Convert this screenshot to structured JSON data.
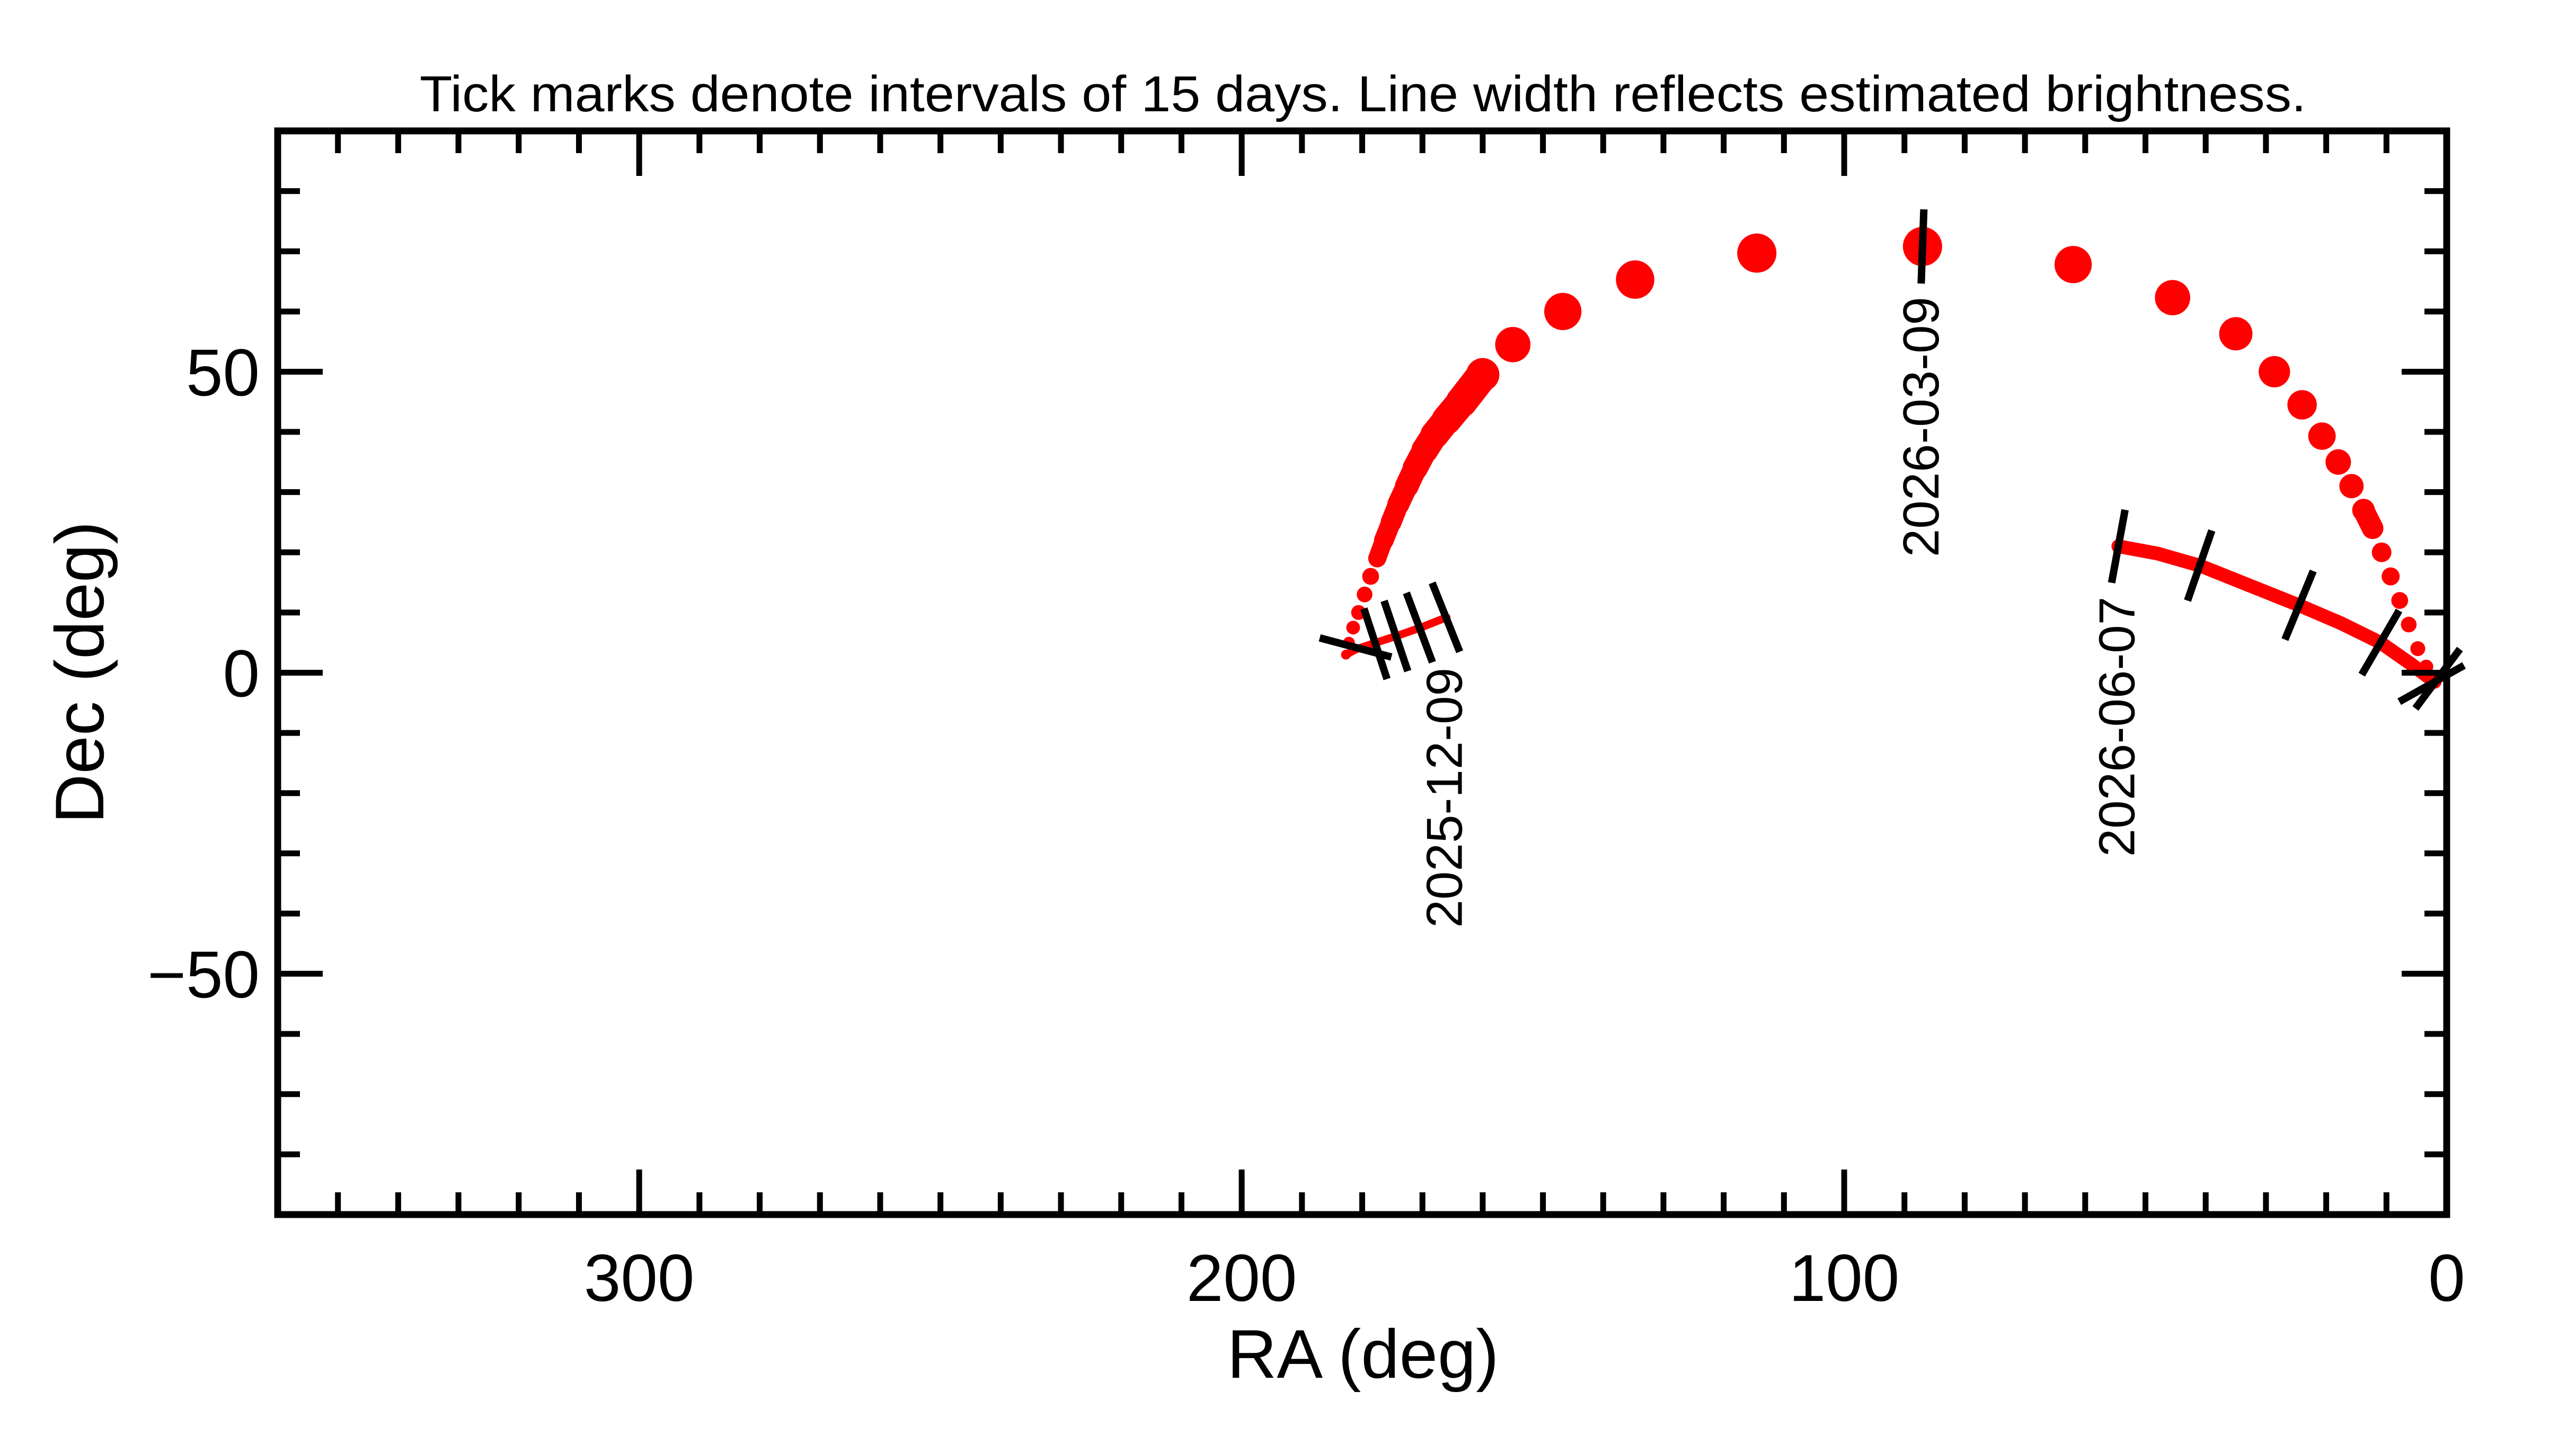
{
  "chart_data": {
    "type": "line",
    "title": "Tick marks denote intervals of 15 days.  Line width reflects estimated brightness.",
    "xlabel": "RA (deg)",
    "ylabel": "Dec (deg)",
    "xlim": [
      360,
      0
    ],
    "ylim": [
      -90,
      90
    ],
    "x_reversed": true,
    "x_major_ticks": [
      300,
      200,
      100,
      0
    ],
    "x_tick_labels": [
      "300",
      "200",
      "100",
      "0"
    ],
    "x_minor_step": 10,
    "y_major_ticks": [
      -50,
      0,
      50
    ],
    "y_tick_labels": [
      "−50",
      "0",
      "50"
    ],
    "y_minor_step": 10,
    "grid": false,
    "track_color": "#ff0000",
    "tick_color": "#000000",
    "series": [
      {
        "style": "line",
        "points": [
          [
            166,
            9.2,
            2
          ],
          [
            170,
            7.6,
            2
          ],
          [
            174,
            6.2,
            2
          ],
          [
            178,
            4.9,
            2
          ],
          [
            181,
            3.9,
            2
          ],
          [
            182.7,
            3,
            2.2
          ]
        ]
      },
      {
        "style": "dots",
        "points": [
          [
            182.7,
            3,
            2.5
          ],
          [
            182.2,
            5,
            3
          ],
          [
            181.5,
            7.5,
            3.5
          ],
          [
            180.6,
            10,
            3.8
          ],
          [
            179.6,
            13,
            4
          ],
          [
            178.6,
            16,
            4.3
          ],
          [
            177.5,
            19,
            4.6
          ],
          [
            176.4,
            22,
            5
          ],
          [
            175.2,
            25,
            5.3
          ],
          [
            174,
            28,
            5.6
          ],
          [
            172.6,
            31,
            6
          ],
          [
            171.2,
            34,
            6.4
          ],
          [
            169.6,
            37,
            6.8
          ],
          [
            168,
            39.5,
            7.2
          ],
          [
            166,
            42,
            7.6
          ],
          [
            163.5,
            45,
            8
          ],
          [
            160,
            49.5,
            8.5
          ],
          [
            155,
            54.5,
            9
          ],
          [
            146.7,
            60,
            9.5
          ],
          [
            134.7,
            65.3,
            9.8
          ],
          [
            114.5,
            69.7,
            10
          ],
          [
            87,
            70.8,
            10
          ],
          [
            62,
            67.8,
            9.5
          ],
          [
            45.5,
            62.3,
            9
          ],
          [
            35,
            56.3,
            8.5
          ],
          [
            28.6,
            50,
            8
          ],
          [
            24,
            44.5,
            7.5
          ],
          [
            20.7,
            39.3,
            7
          ],
          [
            18,
            35,
            6.5
          ],
          [
            15.8,
            31,
            6.2
          ],
          [
            13.8,
            27,
            5.8
          ],
          [
            12.3,
            24,
            5.5
          ],
          [
            10.8,
            20,
            5
          ],
          [
            9.3,
            16,
            4.6
          ],
          [
            7.8,
            12,
            4.3
          ],
          [
            6.3,
            8,
            4
          ],
          [
            4.8,
            4,
            3.8
          ],
          [
            3.4,
            1,
            3.6
          ],
          [
            2,
            -1.5,
            3.5
          ]
        ]
      },
      {
        "style": "line",
        "points": [
          [
            2,
            -1.5,
            3.5
          ],
          [
            6,
            1.5,
            3.5
          ],
          [
            11,
            5,
            3.5
          ],
          [
            17.5,
            8.2,
            3.5
          ],
          [
            24.5,
            11.2,
            3.5
          ],
          [
            33,
            14.6,
            3.5
          ],
          [
            41,
            17.8,
            3.5
          ],
          [
            48,
            19.8,
            3.5
          ],
          [
            54.5,
            21,
            3.5
          ]
        ]
      }
    ],
    "date_ticks": [
      {
        "ra": 166.1,
        "dec": 9.2,
        "series": 0,
        "label": "2025-12-09"
      },
      {
        "ra": 170.5,
        "dec": 7.5,
        "series": 0
      },
      {
        "ra": 174.4,
        "dec": 6.1,
        "series": 0
      },
      {
        "ra": 177.8,
        "dec": 4.8,
        "series": 0
      },
      {
        "ra": 181.1,
        "dec": 4.2,
        "series": 1
      },
      {
        "ra": 87,
        "dec": 70.8,
        "series": 1,
        "label": "2026-03-09"
      },
      {
        "ra": 2.5,
        "dec": -1.8,
        "series": 1
      },
      {
        "ra": 1.5,
        "dec": -1.0,
        "series": 2
      },
      {
        "ra": 11,
        "dec": 5,
        "series": 2
      },
      {
        "ra": 24.5,
        "dec": 11.2,
        "series": 2
      },
      {
        "ra": 41,
        "dec": 17.8,
        "series": 2
      },
      {
        "ra": 54.5,
        "dec": 21,
        "series": 2,
        "label": "2026-06-07"
      }
    ]
  }
}
